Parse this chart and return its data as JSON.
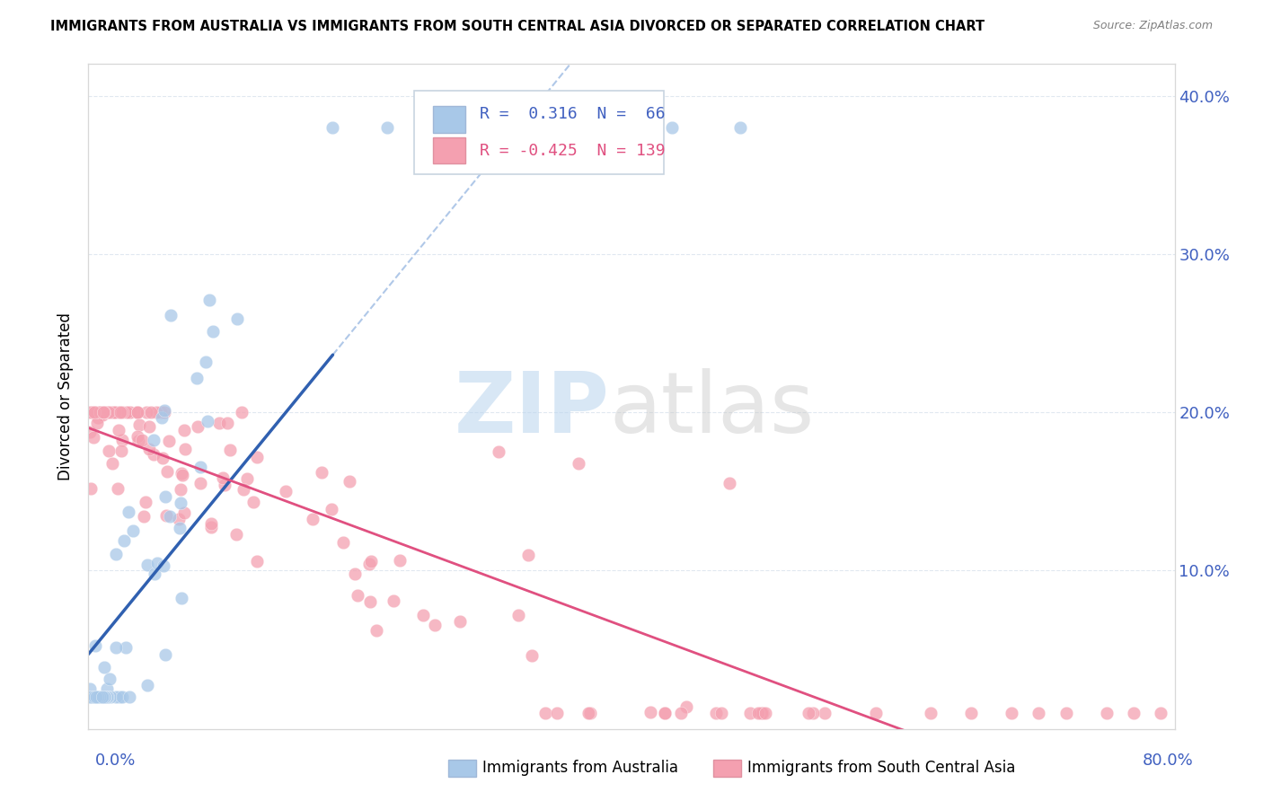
{
  "title": "IMMIGRANTS FROM AUSTRALIA VS IMMIGRANTS FROM SOUTH CENTRAL ASIA DIVORCED OR SEPARATED CORRELATION CHART",
  "source": "Source: ZipAtlas.com",
  "ylabel": "Divorced or Separated",
  "australia_color": "#A8C8E8",
  "australia_edge_color": "#A8C8E8",
  "sca_color": "#F4A0B0",
  "sca_edge_color": "#F4A0B0",
  "australia_line_color": "#3060B0",
  "sca_line_color": "#E05080",
  "diagonal_color": "#B0C8E8",
  "xlim": [
    0.0,
    0.8
  ],
  "ylim": [
    0.0,
    0.42
  ],
  "ytick_positions": [
    0.1,
    0.2,
    0.3,
    0.4
  ],
  "ytick_labels": [
    "10.0%",
    "20.0%",
    "30.0%",
    "40.0%"
  ],
  "xtick_label_left": "0.0%",
  "xtick_label_right": "80.0%",
  "legend_R_aus": "0.316",
  "legend_N_aus": "66",
  "legend_R_sca": "-0.425",
  "legend_N_sca": "139",
  "watermark_zip": "ZIP",
  "watermark_atlas": "atlas",
  "background_color": "#FFFFFF",
  "grid_color": "#E0E8F0",
  "tick_label_color": "#4060C0"
}
